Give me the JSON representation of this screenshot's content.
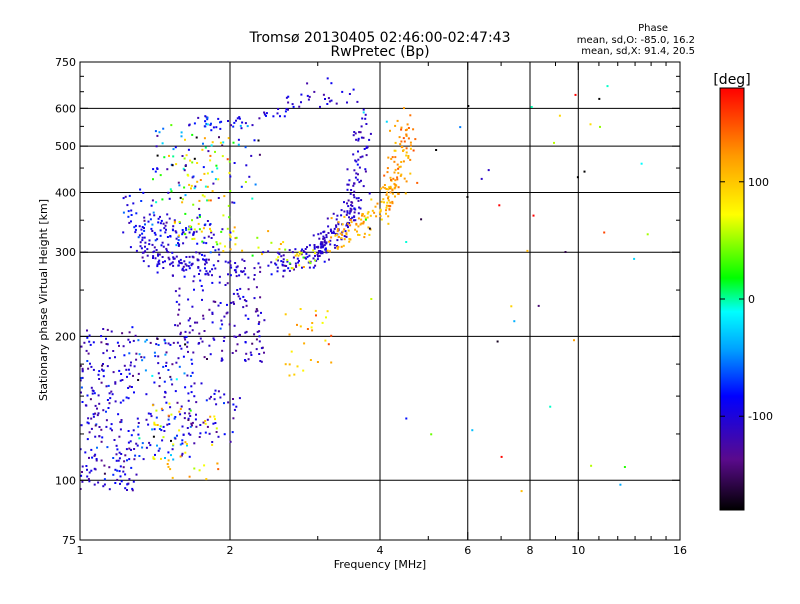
{
  "chart_data": {
    "type": "scatter",
    "title": "Tromsø 20130405 02:46:00-02:47:43",
    "subtitle": "RwPretec (Bp)",
    "xlabel": "Frequency [MHz]",
    "ylabel": "Stationary phase Virtual Height [km]",
    "x_scale": "log",
    "y_scale": "log",
    "xlim": [
      1,
      16
    ],
    "ylim": [
      75,
      750
    ],
    "x_ticks": [
      1,
      2,
      4,
      6,
      8,
      10,
      16
    ],
    "x_tick_labels": [
      "1",
      "2",
      "4",
      "6",
      "8",
      "10",
      "16"
    ],
    "x_minor_ticks": [
      3,
      5,
      7,
      9,
      11,
      12,
      13,
      14,
      15
    ],
    "y_ticks": [
      75,
      100,
      200,
      300,
      400,
      500,
      600,
      750
    ],
    "y_tick_labels": [
      "75",
      "100",
      "200",
      "300",
      "400",
      "500",
      "600",
      "750"
    ],
    "y_minor_ticks": [
      125,
      150,
      175,
      250,
      350,
      450,
      550,
      650,
      700
    ],
    "grid_x": [
      2,
      4,
      6,
      8,
      10
    ],
    "grid_y": [
      100,
      200,
      300,
      400,
      500,
      600
    ],
    "grid": true,
    "stats": {
      "heading": "Phase",
      "line_o": "mean, sd,O: -85.0, 16.2",
      "line_x": "mean, sd,X:  91.4, 20.5"
    },
    "colorbar": {
      "label": "[deg]",
      "range": [
        -180,
        180
      ],
      "ticks": [
        -100,
        0,
        100
      ],
      "tick_labels": [
        "-100",
        "0",
        "100"
      ]
    },
    "traces": [
      {
        "kind": "curve",
        "x": [
          1.3,
          1.4,
          1.5,
          1.6,
          1.7,
          1.8,
          2.0,
          2.2,
          2.5,
          2.8,
          3.0,
          3.2
        ],
        "y": [
          330,
          300,
          290,
          283,
          278,
          276,
          275,
          276,
          282,
          292,
          302,
          308
        ],
        "spread": 0.035,
        "n": 240,
        "phase": -105,
        "phase_sd": 12
      },
      {
        "kind": "curve",
        "x": [
          1.25,
          1.35,
          1.45,
          1.55,
          1.7,
          1.9
        ],
        "y": [
          365,
          352,
          340,
          333,
          328,
          326
        ],
        "spread": 0.06,
        "n": 120,
        "phase": -95,
        "phase_sd": 18
      },
      {
        "kind": "curve",
        "x": [
          1.55,
          1.7,
          1.9,
          2.1,
          2.4,
          2.7,
          3.0
        ],
        "y": [
          345,
          336,
          328,
          318,
          305,
          295,
          288
        ],
        "spread": 0.04,
        "n": 70,
        "phase": 70,
        "phase_sd": 30
      },
      {
        "kind": "curve",
        "x": [
          3.0,
          3.2,
          3.4,
          3.55,
          3.65,
          3.72
        ],
        "y": [
          308,
          320,
          345,
          390,
          470,
          600
        ],
        "spread": 0.04,
        "n": 170,
        "phase": -108,
        "phase_sd": 10
      },
      {
        "kind": "curve",
        "x": [
          3.2,
          3.5,
          3.8,
          4.1,
          4.3,
          4.5
        ],
        "y": [
          320,
          330,
          355,
          380,
          430,
          520
        ],
        "spread": 0.04,
        "n": 130,
        "phase": 110,
        "phase_sd": 10
      },
      {
        "kind": "curve",
        "x": [
          4.2,
          4.4,
          4.6
        ],
        "y": [
          390,
          470,
          560
        ],
        "spread": 0.05,
        "n": 60,
        "phase": 130,
        "phase_sd": 12
      },
      {
        "kind": "curve",
        "x": [
          2.6,
          2.9,
          3.2,
          3.5
        ],
        "y": [
          620,
          630,
          640,
          620
        ],
        "spread": 0.03,
        "n": 25,
        "phase": -110,
        "phase_sd": 12
      },
      {
        "kind": "curve",
        "x": [
          1.65,
          1.8,
          2.0,
          2.2
        ],
        "y": [
          570,
          560,
          565,
          575
        ],
        "spread": 0.02,
        "n": 30,
        "phase": -95,
        "phase_sd": 15
      },
      {
        "kind": "curve",
        "x": [
          2.3,
          2.5,
          2.7
        ],
        "y": [
          580,
          590,
          600
        ],
        "spread": 0.02,
        "n": 15,
        "phase": -95,
        "phase_sd": 15
      },
      {
        "kind": "cloud",
        "x": [
          1.0,
          1.3
        ],
        "y": [
          95,
          210
        ],
        "n": 230,
        "phase": -105,
        "phase_sd": 20
      },
      {
        "kind": "cloud",
        "x": [
          1.3,
          1.7
        ],
        "y": [
          110,
          200
        ],
        "n": 130,
        "phase": -90,
        "phase_sd": 40
      },
      {
        "kind": "cloud",
        "x": [
          1.6,
          2.1
        ],
        "y": [
          120,
          160
        ],
        "n": 55,
        "phase": -105,
        "phase_sd": 15
      },
      {
        "kind": "cloud",
        "x": [
          1.55,
          2.35
        ],
        "y": [
          175,
          255
        ],
        "n": 130,
        "phase": -112,
        "phase_sd": 18
      },
      {
        "kind": "cloud",
        "x": [
          1.4,
          2.3
        ],
        "y": [
          380,
          560
        ],
        "n": 90,
        "phase": -80,
        "phase_sd": 60
      },
      {
        "kind": "cloud",
        "x": [
          1.5,
          2.0
        ],
        "y": [
          360,
          520
        ],
        "n": 40,
        "phase": 90,
        "phase_sd": 30
      },
      {
        "kind": "cloud",
        "x": [
          1.4,
          1.9
        ],
        "y": [
          100,
          145
        ],
        "n": 45,
        "phase": 100,
        "phase_sd": 30
      },
      {
        "kind": "cloud",
        "x": [
          2.5,
          3.2
        ],
        "y": [
          165,
          230
        ],
        "n": 28,
        "phase": 110,
        "phase_sd": 25
      },
      {
        "kind": "cloud",
        "x": [
          3.5,
          14.0
        ],
        "y": [
          90,
          680
        ],
        "n": 45,
        "phase": 0,
        "phase_sd": 130
      }
    ]
  }
}
